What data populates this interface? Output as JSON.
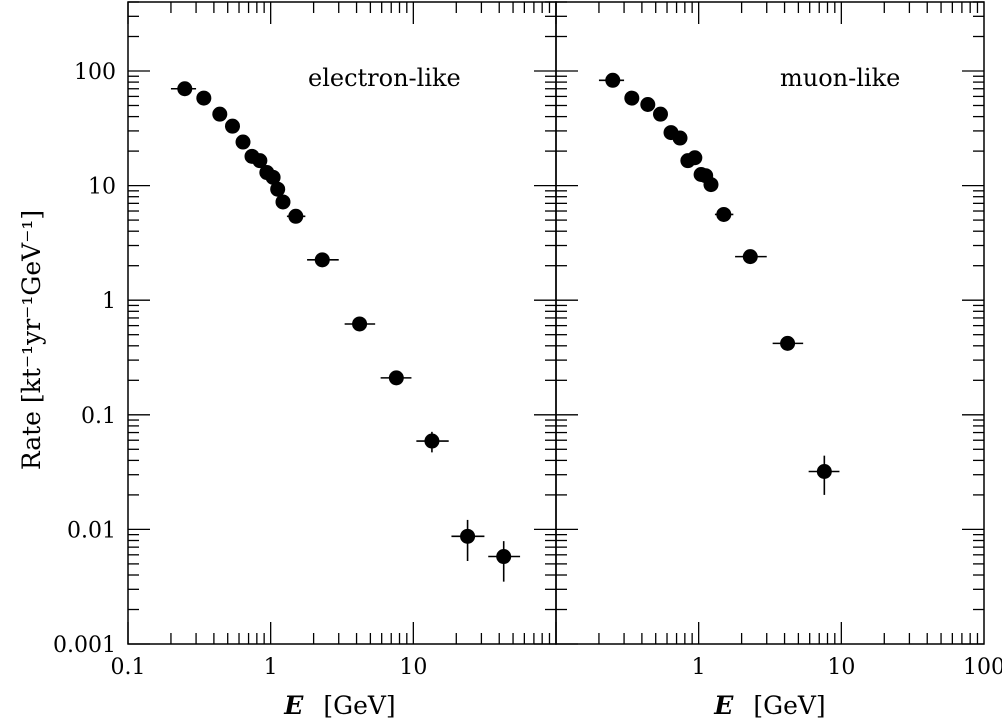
{
  "chart_data": {
    "type": "scatter",
    "x_scale": "log",
    "y_scale": "log",
    "ylabel": "Rate  [kt⁻¹yr⁻¹GeV⁻¹]",
    "ylim": [
      0.001,
      400
    ],
    "y_tick_labels": [
      "100",
      "10",
      "1",
      "0.1",
      "0.01",
      "0.001"
    ],
    "y_tick_values": [
      100,
      10,
      1,
      0.1,
      0.01,
      0.001
    ],
    "grid": false,
    "marker": "filled-circle",
    "panels": [
      {
        "label": "electron-like",
        "xlabel_symbol": "E",
        "xlabel_unit": "[GeV]",
        "xlim": [
          0.1,
          100
        ],
        "x_tick_labels": [
          "0.1",
          "1",
          "10"
        ],
        "x_tick_values": [
          0.1,
          1,
          10
        ],
        "points": [
          {
            "x": 0.25,
            "y": 70,
            "xerr": [
              0.05,
              0.05
            ],
            "yerr": [
              0,
              0
            ]
          },
          {
            "x": 0.34,
            "y": 58,
            "xerr": [
              0,
              0
            ],
            "yerr": [
              0,
              0
            ]
          },
          {
            "x": 0.44,
            "y": 42,
            "xerr": [
              0,
              0
            ],
            "yerr": [
              0,
              0
            ]
          },
          {
            "x": 0.54,
            "y": 33,
            "xerr": [
              0,
              0
            ],
            "yerr": [
              0,
              0
            ]
          },
          {
            "x": 0.64,
            "y": 24,
            "xerr": [
              0,
              0
            ],
            "yerr": [
              0,
              0
            ]
          },
          {
            "x": 0.74,
            "y": 18,
            "xerr": [
              0,
              0
            ],
            "yerr": [
              0,
              0
            ]
          },
          {
            "x": 0.84,
            "y": 16.5,
            "xerr": [
              0,
              0
            ],
            "yerr": [
              0,
              0
            ]
          },
          {
            "x": 0.94,
            "y": 13,
            "xerr": [
              0,
              0
            ],
            "yerr": [
              0,
              0
            ]
          },
          {
            "x": 1.04,
            "y": 11.8,
            "xerr": [
              0,
              0
            ],
            "yerr": [
              0,
              0
            ]
          },
          {
            "x": 1.12,
            "y": 9.3,
            "xerr": [
              0,
              0
            ],
            "yerr": [
              0,
              0
            ]
          },
          {
            "x": 1.22,
            "y": 7.2,
            "xerr": [
              0,
              0
            ],
            "yerr": [
              0,
              0
            ]
          },
          {
            "x": 1.5,
            "y": 5.4,
            "xerr": [
              0.2,
              0.25
            ],
            "yerr": [
              0,
              0
            ]
          },
          {
            "x": 2.3,
            "y": 2.25,
            "xerr": [
              0.5,
              0.7
            ],
            "yerr": [
              0,
              0
            ]
          },
          {
            "x": 4.2,
            "y": 0.62,
            "xerr": [
              0.9,
              1.2
            ],
            "yerr": [
              0,
              0
            ]
          },
          {
            "x": 7.6,
            "y": 0.21,
            "xerr": [
              1.7,
              2.1
            ],
            "yerr": [
              0.02,
              0.02
            ]
          },
          {
            "x": 13.5,
            "y": 0.059,
            "xerr": [
              3.0,
              4.2
            ],
            "yerr": [
              0.012,
              0.012
            ]
          },
          {
            "x": 24,
            "y": 0.0087,
            "xerr": [
              5.5,
              7.5
            ],
            "yerr": [
              0.0034,
              0.0034
            ]
          },
          {
            "x": 43,
            "y": 0.0058,
            "xerr": [
              9.5,
              13
            ],
            "yerr": [
              0.0023,
              0.0021
            ]
          }
        ]
      },
      {
        "label": "muon-like",
        "xlabel_symbol": "E",
        "xlabel_unit": "[GeV]",
        "xlim": [
          0.1,
          100
        ],
        "x_tick_labels": [
          "1",
          "10",
          "100"
        ],
        "x_tick_values": [
          1,
          10,
          100
        ],
        "points": [
          {
            "x": 0.25,
            "y": 83,
            "xerr": [
              0.05,
              0.05
            ],
            "yerr": [
              0,
              0
            ]
          },
          {
            "x": 0.34,
            "y": 58,
            "xerr": [
              0,
              0
            ],
            "yerr": [
              0,
              0
            ]
          },
          {
            "x": 0.44,
            "y": 51,
            "xerr": [
              0,
              0
            ],
            "yerr": [
              0,
              0
            ]
          },
          {
            "x": 0.54,
            "y": 42,
            "xerr": [
              0,
              0
            ],
            "yerr": [
              0,
              0
            ]
          },
          {
            "x": 0.64,
            "y": 29,
            "xerr": [
              0,
              0
            ],
            "yerr": [
              0,
              0
            ]
          },
          {
            "x": 0.74,
            "y": 26,
            "xerr": [
              0,
              0
            ],
            "yerr": [
              0,
              0
            ]
          },
          {
            "x": 0.84,
            "y": 16.5,
            "xerr": [
              0,
              0
            ],
            "yerr": [
              0,
              0
            ]
          },
          {
            "x": 0.94,
            "y": 17.5,
            "xerr": [
              0,
              0
            ],
            "yerr": [
              0,
              0
            ]
          },
          {
            "x": 1.04,
            "y": 12.5,
            "xerr": [
              0,
              0
            ],
            "yerr": [
              0,
              0
            ]
          },
          {
            "x": 1.12,
            "y": 12.2,
            "xerr": [
              0,
              0
            ],
            "yerr": [
              0,
              0
            ]
          },
          {
            "x": 1.22,
            "y": 10.2,
            "xerr": [
              0,
              0
            ],
            "yerr": [
              0,
              0
            ]
          },
          {
            "x": 1.5,
            "y": 5.6,
            "xerr": [
              0.2,
              0.25
            ],
            "yerr": [
              0,
              0
            ]
          },
          {
            "x": 2.3,
            "y": 2.4,
            "xerr": [
              0.5,
              0.7
            ],
            "yerr": [
              0,
              0
            ]
          },
          {
            "x": 4.2,
            "y": 0.42,
            "xerr": [
              0.9,
              1.2
            ],
            "yerr": [
              0.03,
              0.03
            ]
          },
          {
            "x": 7.6,
            "y": 0.032,
            "xerr": [
              1.7,
              2.1
            ],
            "yerr": [
              0.012,
              0.012
            ]
          }
        ]
      }
    ]
  }
}
